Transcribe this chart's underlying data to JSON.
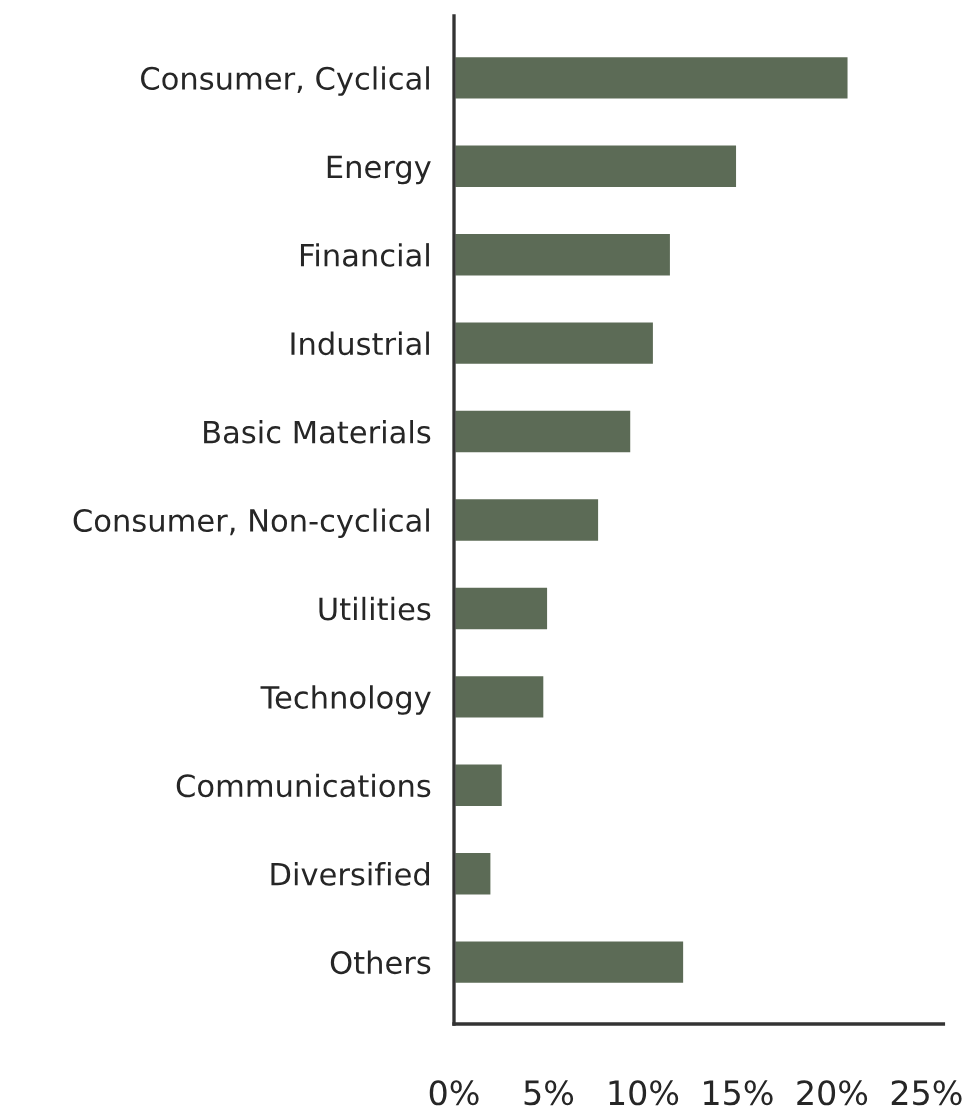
{
  "chart_data": {
    "type": "bar",
    "orientation": "horizontal",
    "categories": [
      "Consumer, Cyclical",
      "Energy",
      "Financial",
      "Industrial",
      "Basic Materials",
      "Consumer, Non-cyclical",
      "Utilities",
      "Technology",
      "Communications",
      "Diversified",
      "Others"
    ],
    "values": [
      20.9,
      15.0,
      11.5,
      10.6,
      9.4,
      7.7,
      5.0,
      4.8,
      2.6,
      2.0,
      12.2
    ],
    "color": "#5c6b56",
    "xlim": [
      0,
      25.9
    ],
    "xticks": [
      {
        "value": 0,
        "label": "0%"
      },
      {
        "value": 5,
        "label": "5%"
      },
      {
        "value": 10,
        "label": "10%"
      },
      {
        "value": 15,
        "label": "15%"
      },
      {
        "value": 20,
        "label": "20%"
      },
      {
        "value": 25,
        "label": "25%"
      }
    ],
    "grid": false,
    "legend": false
  }
}
